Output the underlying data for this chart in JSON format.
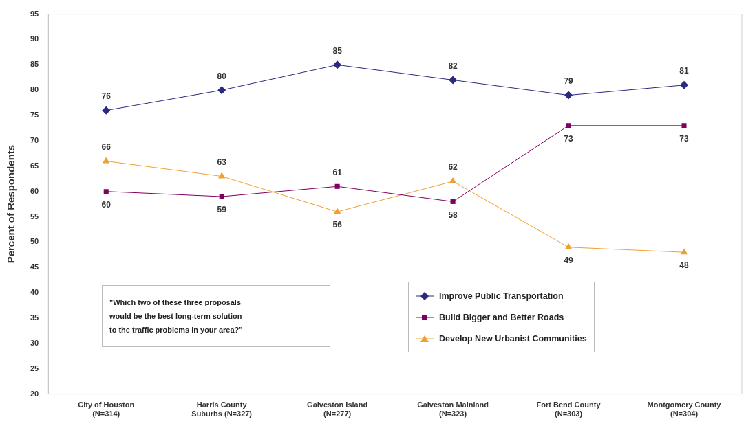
{
  "chart_data": {
    "type": "line",
    "ylabel": "Percent of Respondents",
    "categories": [
      "City of Houston\n(N=314)",
      "Harris County\nSuburbs (N=327)",
      "Galveston Island\n(N=277)",
      "Galveston Mainland\n(N=323)",
      "Fort Bend County\n(N=303)",
      "Montgomery County\n(N=304)"
    ],
    "series": [
      {
        "name": "Improve Public Transportation",
        "color": "#2a2a80",
        "marker": "diamond",
        "values": [
          76,
          80,
          85,
          82,
          79,
          81
        ]
      },
      {
        "name": "Build Bigger and Better Roads",
        "color": "#800060",
        "marker": "square",
        "values": [
          60,
          59,
          61,
          58,
          73,
          73
        ]
      },
      {
        "name": "Develop New Urbanist Communities",
        "color": "#f0a030",
        "marker": "triangle",
        "values": [
          66,
          63,
          56,
          62,
          49,
          48
        ]
      }
    ],
    "ylim": [
      20,
      95
    ],
    "yticks": [
      20,
      25,
      30,
      35,
      40,
      45,
      50,
      55,
      60,
      65,
      70,
      75,
      80,
      85,
      90,
      95
    ],
    "data_labels": true,
    "legend": "bottom right",
    "annotations": [
      "\"Which two of these three proposals\nwould be the best long-term solution\nto the traffic problems in your area?\""
    ]
  }
}
